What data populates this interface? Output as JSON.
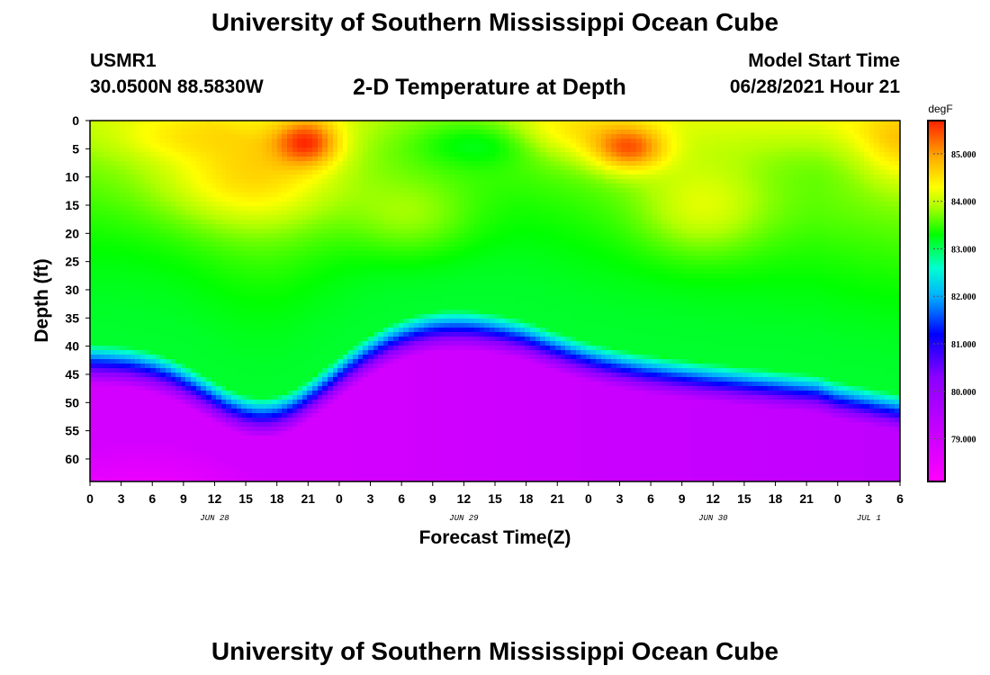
{
  "header": {
    "title": "University of Southern Mississippi Ocean Cube",
    "station_id": "USMR1",
    "coordinates": "30.0500N  88.5830W",
    "chart_heading": "2-D Temperature at Depth",
    "model_label": "Model Start Time",
    "model_time": "06/28/2021 Hour 21"
  },
  "footer": {
    "title": "University of Southern Mississippi Ocean Cube"
  },
  "chart_data": {
    "type": "heatmap",
    "title": "2-D Temperature at Depth",
    "xlabel": "Forecast Time(Z)",
    "ylabel": "Depth (ft)",
    "x_tick_labels": [
      "0",
      "3",
      "6",
      "9",
      "12",
      "15",
      "18",
      "21",
      "0",
      "3",
      "6",
      "9",
      "12",
      "15",
      "18",
      "21",
      "0",
      "3",
      "6",
      "9",
      "12",
      "15",
      "18",
      "21",
      "0",
      "3",
      "6"
    ],
    "x_date_labels": [
      {
        "label": "JUN 28",
        "tick_index": 4
      },
      {
        "label": "JUN 29",
        "tick_index": 12
      },
      {
        "label": "JUN 30",
        "tick_index": 20
      },
      {
        "label": "JUL 1",
        "tick_index": 25
      }
    ],
    "y_ticks": [
      0,
      5,
      10,
      15,
      20,
      25,
      30,
      35,
      40,
      45,
      50,
      55,
      60
    ],
    "ylim": [
      0,
      64
    ],
    "y_inverted": true,
    "colorbar": {
      "unit": "degF",
      "min": 78.1,
      "max": 85.7,
      "ticks": [
        {
          "value": 79,
          "label": "79.000"
        },
        {
          "value": 80,
          "label": "80.000"
        },
        {
          "value": 81,
          "label": "81.000"
        },
        {
          "value": 82,
          "label": "82.000"
        },
        {
          "value": 83,
          "label": "83.000"
        },
        {
          "value": 84,
          "label": "84.000"
        },
        {
          "value": 85,
          "label": "85.000"
        }
      ],
      "stops": [
        {
          "value": 78.1,
          "color": "#ff00ff"
        },
        {
          "value": 80.3,
          "color": "#8a00ff"
        },
        {
          "value": 81.2,
          "color": "#0000ff"
        },
        {
          "value": 82.0,
          "color": "#00b0ff"
        },
        {
          "value": 82.6,
          "color": "#00ffd0"
        },
        {
          "value": 83.3,
          "color": "#00ff00"
        },
        {
          "value": 83.9,
          "color": "#b0ff00"
        },
        {
          "value": 84.3,
          "color": "#ffff00"
        },
        {
          "value": 84.9,
          "color": "#ffb000"
        },
        {
          "value": 85.7,
          "color": "#ff2000"
        }
      ]
    }
  }
}
